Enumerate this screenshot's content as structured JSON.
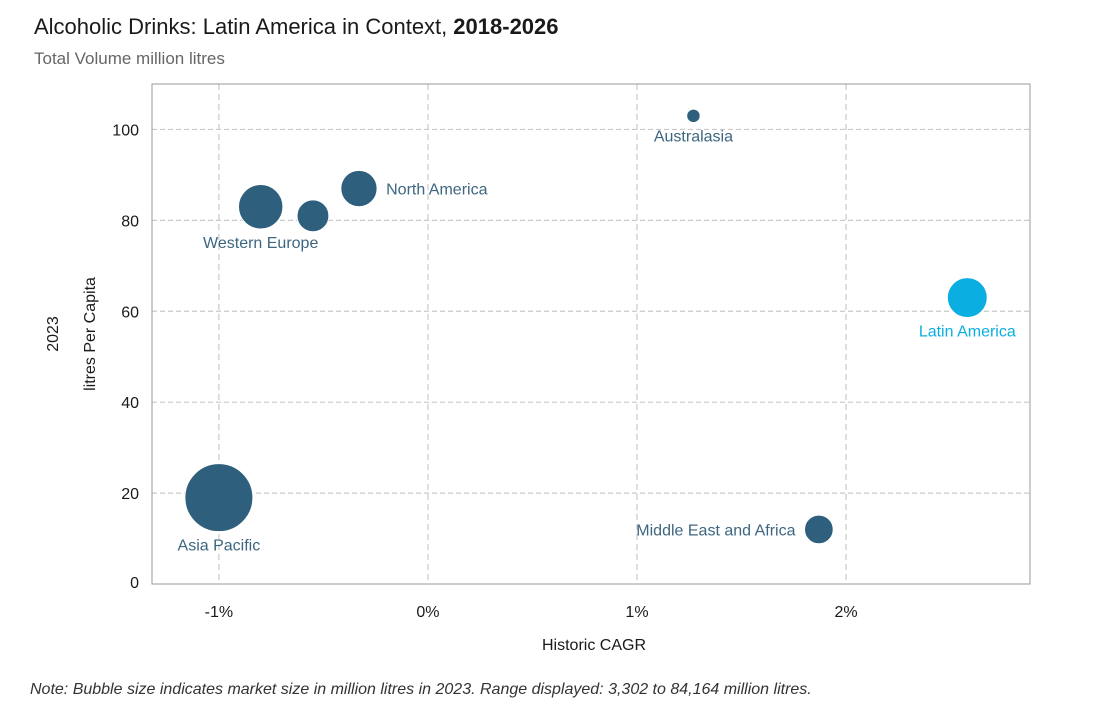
{
  "header": {
    "title": "Alcoholic Drinks: Latin America in Context,",
    "title_years": "2018-2026",
    "subtitle": "Total Volume million litres"
  },
  "note": "Note: Bubble size indicates market size in million litres in 2023. Range displayed: 3,302 to 84,164 million litres.",
  "colors": {
    "bubble_default": "#2e5f7d",
    "bubble_highlight": "#0aaee0",
    "label_default": "#3d6680",
    "label_highlight": "#0aaee0",
    "grid": "#c9c9c9",
    "axis_text": "#1a1a1a"
  },
  "chart_data": {
    "type": "scatter",
    "variant": "bubble",
    "xlabel": "Historic CAGR",
    "ylabel_lines": [
      "2023",
      "litres Per Capita"
    ],
    "xlim": [
      -1.32,
      2.88
    ],
    "ylim": [
      0,
      110
    ],
    "xticks": [
      {
        "value": -1,
        "label": "-1%"
      },
      {
        "value": 0,
        "label": "0%"
      },
      {
        "value": 1,
        "label": "1%"
      },
      {
        "value": 2,
        "label": "2%"
      }
    ],
    "yticks": [
      {
        "value": 0,
        "label": "0"
      },
      {
        "value": 20,
        "label": "20"
      },
      {
        "value": 40,
        "label": "40"
      },
      {
        "value": 60,
        "label": "60"
      },
      {
        "value": 80,
        "label": "80"
      },
      {
        "value": 100,
        "label": "100"
      }
    ],
    "grid": true,
    "size_range_million_litres": [
      3302,
      84164
    ],
    "points": [
      {
        "id": "asia-pacific",
        "label": "Asia Pacific",
        "x": -1.0,
        "y": 19,
        "size": 84164,
        "highlight": false,
        "label_position": "below"
      },
      {
        "id": "western-europe",
        "label": "Western Europe",
        "x": -0.8,
        "y": 83,
        "size": 36000,
        "highlight": false,
        "label_position": "below"
      },
      {
        "id": "eastern-europe",
        "label": "",
        "x": -0.55,
        "y": 81,
        "size": 18500,
        "highlight": false,
        "label_position": "none"
      },
      {
        "id": "north-america",
        "label": "North America",
        "x": -0.33,
        "y": 87,
        "size": 24000,
        "highlight": false,
        "label_position": "right"
      },
      {
        "id": "australasia",
        "label": "Australasia",
        "x": 1.27,
        "y": 103,
        "size": 3302,
        "highlight": false,
        "label_position": "below"
      },
      {
        "id": "latin-america",
        "label": "Latin America",
        "x": 2.58,
        "y": 63,
        "size": 29000,
        "highlight": true,
        "label_position": "below"
      },
      {
        "id": "middle-east-and-africa",
        "label": "Middle East and Africa",
        "x": 1.87,
        "y": 12,
        "size": 15000,
        "highlight": false,
        "label_position": "left"
      }
    ]
  }
}
